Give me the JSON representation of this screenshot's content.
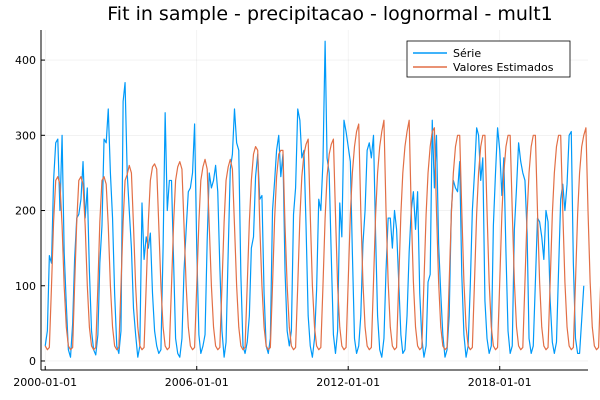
{
  "chart_data": {
    "type": "line",
    "title": "Fit in sample - precipitacao - lognormal - mult1",
    "xlabel": "",
    "ylabel": "",
    "x_ticks": [
      "2000-01-01",
      "2006-01-01",
      "2012-01-01",
      "2018-01-01"
    ],
    "y_ticks": [
      0,
      100,
      200,
      300,
      400
    ],
    "x_range": [
      "1999-11-01",
      "2021-07-01"
    ],
    "ylim": [
      -12,
      440
    ],
    "x_start": "2000-01-01",
    "x_step": "month",
    "grid": true,
    "legend_position": "top-right",
    "series": [
      {
        "name": "Série",
        "color": "#009af9",
        "values": [
          20,
          40,
          140,
          130,
          240,
          290,
          295,
          200,
          300,
          145,
          75,
          15,
          5,
          50,
          135,
          190,
          195,
          215,
          265,
          190,
          230,
          120,
          40,
          15,
          8,
          35,
          130,
          180,
          295,
          290,
          335,
          250,
          190,
          90,
          20,
          10,
          40,
          345,
          370,
          250,
          200,
          150,
          70,
          35,
          5,
          20,
          210,
          135,
          165,
          150,
          170,
          90,
          40,
          20,
          10,
          15,
          150,
          330,
          200,
          240,
          240,
          130,
          30,
          10,
          5,
          30,
          120,
          175,
          225,
          230,
          250,
          315,
          150,
          35,
          10,
          20,
          35,
          160,
          250,
          230,
          240,
          260,
          225,
          125,
          40,
          5,
          25,
          145,
          255,
          275,
          335,
          290,
          280,
          115,
          20,
          10,
          25,
          60,
          150,
          165,
          245,
          275,
          215,
          220,
          90,
          20,
          10,
          30,
          200,
          240,
          280,
          300,
          245,
          275,
          120,
          40,
          20,
          40,
          195,
          230,
          335,
          320,
          270,
          280,
          180,
          60,
          20,
          5,
          30,
          95,
          215,
          200,
          265,
          425,
          270,
          250,
          140,
          35,
          10,
          40,
          210,
          165,
          320,
          305,
          285,
          265,
          145,
          30,
          10,
          20,
          60,
          155,
          200,
          280,
          290,
          270,
          300,
          165,
          60,
          15,
          5,
          30,
          120,
          190,
          190,
          150,
          200,
          175,
          105,
          35,
          10,
          15,
          60,
          145,
          200,
          225,
          175,
          225,
          90,
          30,
          5,
          20,
          105,
          115,
          320,
          230,
          300,
          155,
          90,
          35,
          5,
          15,
          60,
          200,
          240,
          230,
          225,
          265,
          115,
          35,
          5,
          20,
          100,
          200,
          250,
          310,
          300,
          240,
          270,
          80,
          30,
          10,
          20,
          180,
          250,
          310,
          280,
          220,
          270,
          145,
          40,
          10,
          20,
          175,
          230,
          290,
          265,
          250,
          240,
          170,
          30,
          10,
          20,
          105,
          190,
          185,
          165,
          135,
          200,
          185,
          80,
          25,
          10,
          25,
          120,
          215,
          235,
          200,
          235,
          300,
          305,
          130,
          30,
          10,
          10,
          55,
          100
        ]
      },
      {
        "name": "Valores Estimados",
        "color": "#e26f46",
        "values": [
          20,
          15,
          18,
          100,
          185,
          240,
          245,
          235,
          180,
          100,
          45,
          20,
          15,
          18,
          100,
          185,
          240,
          245,
          235,
          180,
          100,
          45,
          20,
          15,
          18,
          100,
          185,
          240,
          245,
          235,
          180,
          100,
          45,
          20,
          15,
          18,
          100,
          185,
          240,
          248,
          260,
          250,
          180,
          100,
          45,
          20,
          15,
          18,
          100,
          185,
          240,
          258,
          262,
          255,
          180,
          100,
          45,
          20,
          15,
          18,
          100,
          185,
          240,
          258,
          265,
          255,
          180,
          100,
          45,
          20,
          15,
          18,
          100,
          185,
          240,
          258,
          268,
          255,
          180,
          100,
          45,
          20,
          15,
          18,
          100,
          185,
          240,
          258,
          268,
          255,
          180,
          100,
          45,
          20,
          15,
          18,
          100,
          185,
          240,
          275,
          285,
          280,
          180,
          100,
          45,
          20,
          15,
          18,
          100,
          190,
          245,
          275,
          280,
          280,
          180,
          100,
          45,
          20,
          15,
          18,
          100,
          190,
          245,
          275,
          288,
          295,
          195,
          100,
          45,
          20,
          15,
          18,
          100,
          190,
          245,
          275,
          288,
          295,
          195,
          100,
          45,
          20,
          15,
          18,
          105,
          195,
          250,
          285,
          305,
          315,
          200,
          105,
          45,
          20,
          15,
          18,
          105,
          195,
          250,
          285,
          305,
          320,
          200,
          105,
          45,
          20,
          15,
          18,
          105,
          195,
          250,
          285,
          305,
          320,
          200,
          105,
          45,
          20,
          15,
          18,
          105,
          195,
          250,
          285,
          305,
          310,
          200,
          105,
          45,
          20,
          15,
          18,
          105,
          195,
          250,
          285,
          300,
          300,
          200,
          105,
          45,
          20,
          15,
          18,
          105,
          195,
          250,
          285,
          300,
          300,
          200,
          105,
          45,
          20,
          15,
          18,
          105,
          195,
          250,
          285,
          300,
          300,
          200,
          105,
          45,
          20,
          15,
          18,
          105,
          195,
          250,
          285,
          300,
          300,
          200,
          105,
          45,
          20,
          15,
          18,
          105,
          195,
          250,
          285,
          300,
          300,
          200,
          105,
          45,
          20,
          15,
          18,
          105,
          195,
          250,
          285,
          300,
          310,
          200,
          105,
          45,
          20,
          15,
          18,
          105,
          195,
          250,
          285,
          300,
          310,
          200,
          105,
          45,
          20,
          15,
          18,
          150
        ]
      }
    ]
  }
}
